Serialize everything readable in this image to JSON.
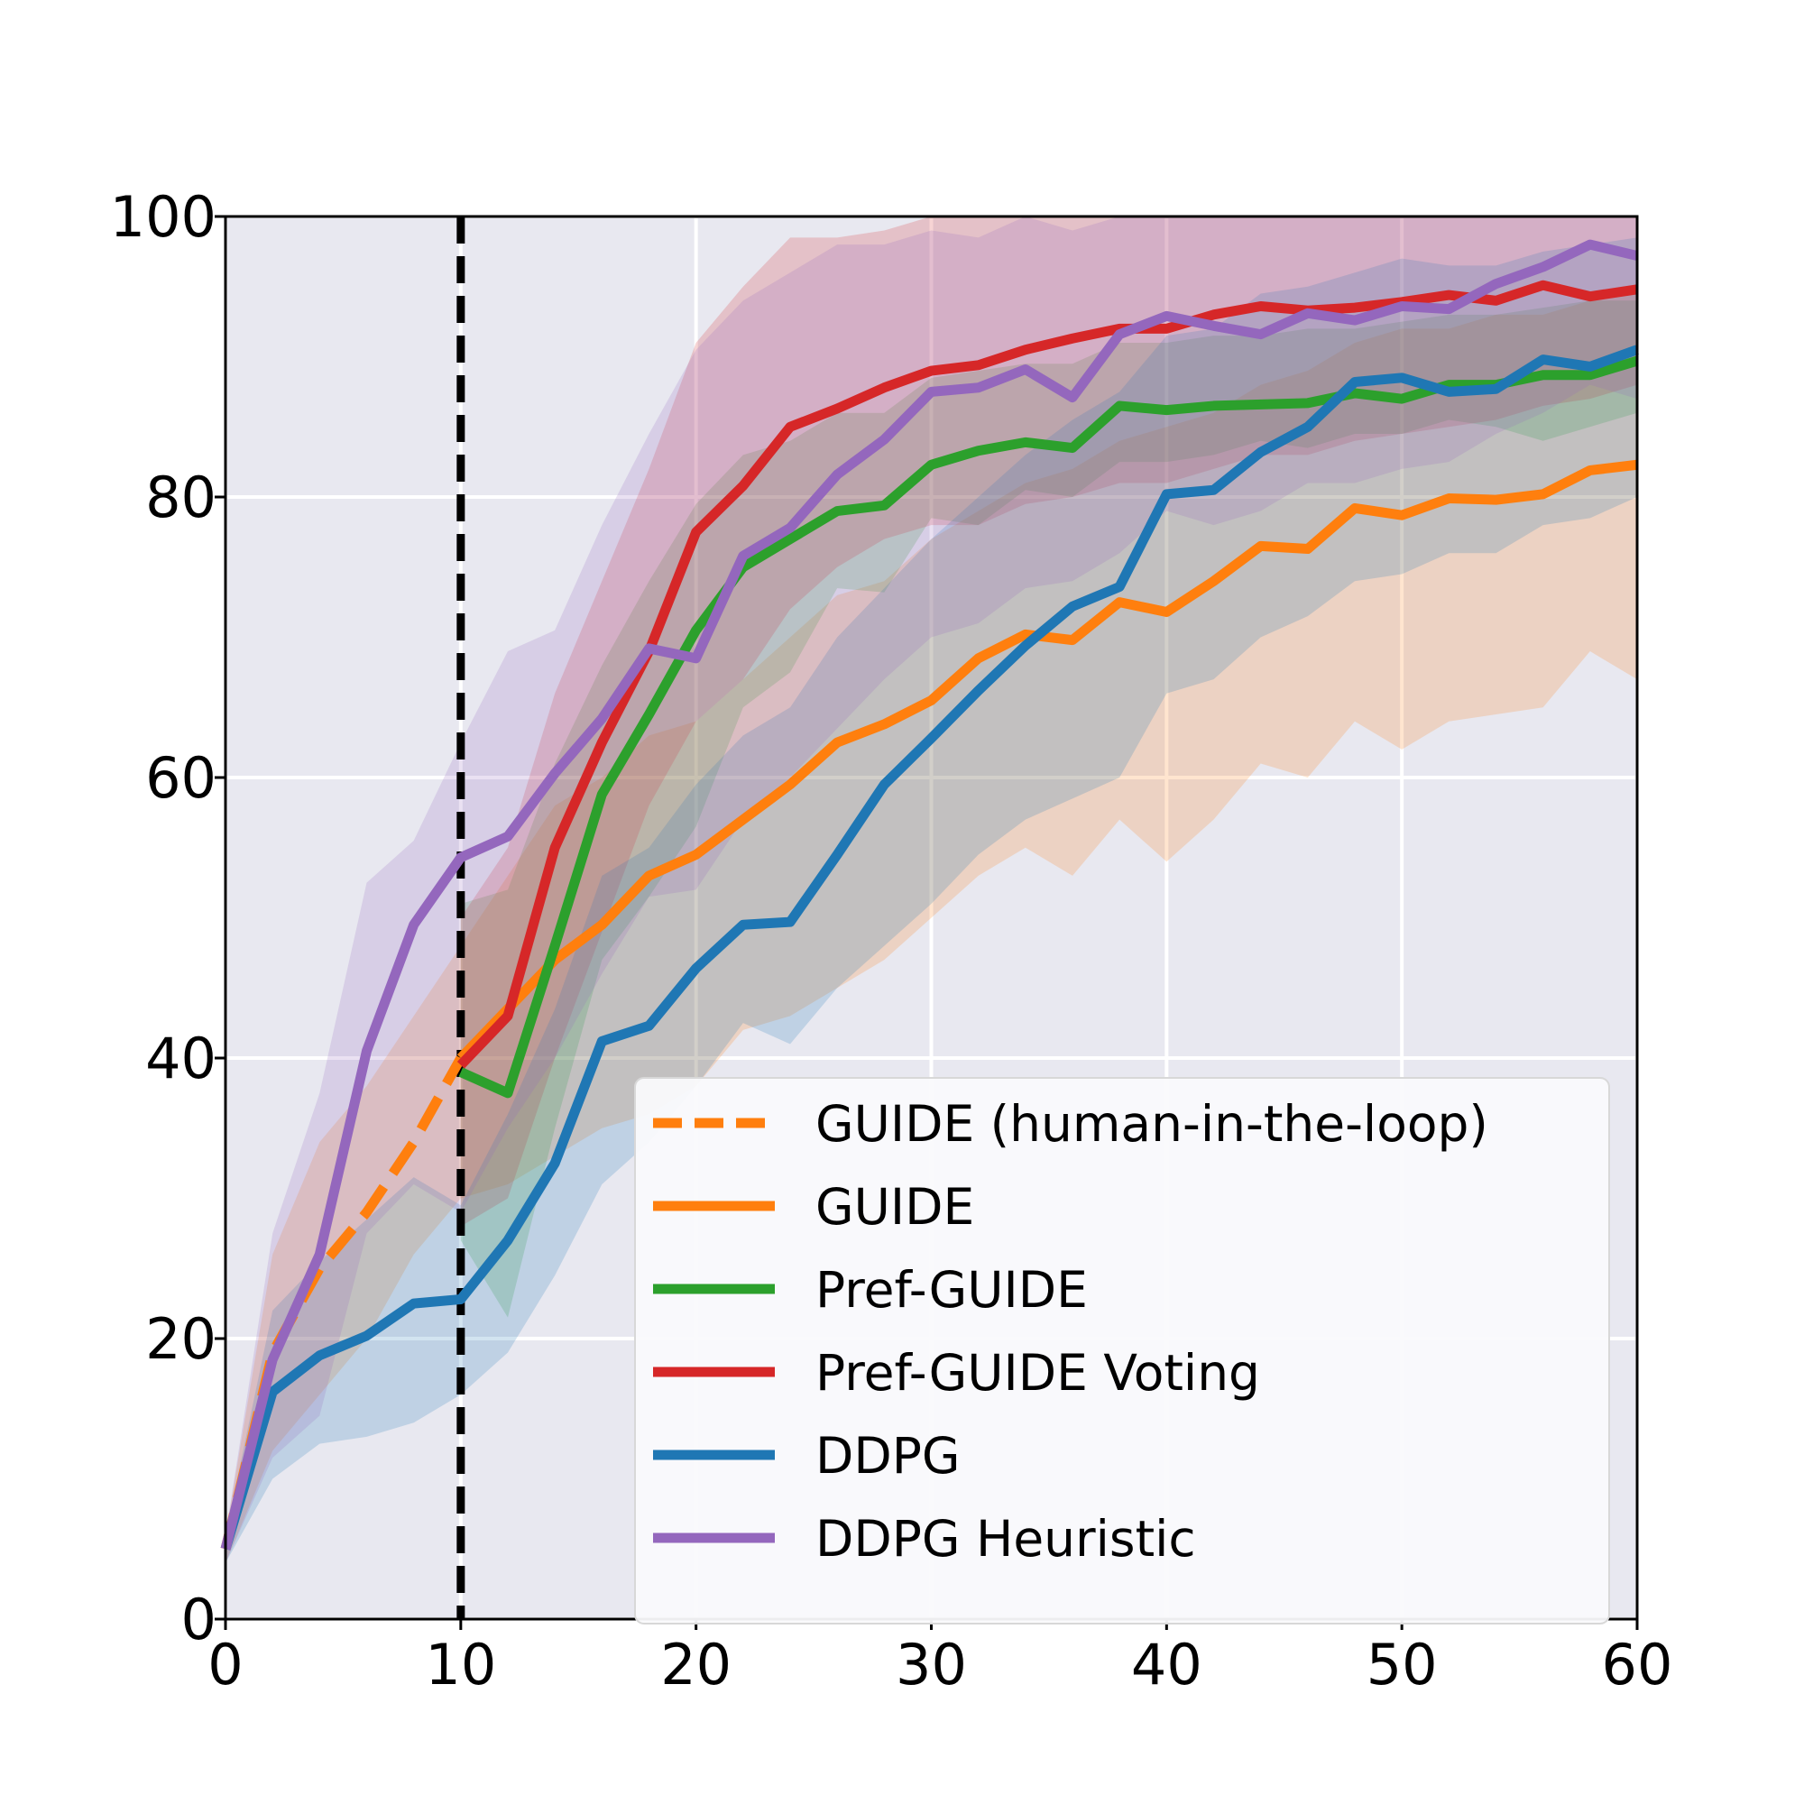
{
  "chart_data": {
    "type": "line",
    "title": "",
    "xlabel": "",
    "ylabel": "",
    "xlim": [
      0,
      60
    ],
    "ylim": [
      0,
      100
    ],
    "xticks": [
      0,
      10,
      20,
      30,
      40,
      50,
      60
    ],
    "yticks": [
      0,
      20,
      40,
      60,
      80,
      100
    ],
    "xtick_labels": [
      "0",
      "10",
      "20",
      "30",
      "40",
      "50",
      "60"
    ],
    "ytick_labels": [
      "0",
      "20",
      "40",
      "60",
      "80",
      "100"
    ],
    "grid": true,
    "background_color": "#e8e8f0",
    "legend_position": "bottom-right",
    "vline": {
      "x": 10,
      "style": "dashed",
      "color": "#000000"
    },
    "series": [
      {
        "name": "GUIDE (human-in-the-loop)",
        "color": "#ff7f0e",
        "style": "dashed",
        "x": [
          0,
          2,
          4,
          6,
          8,
          10
        ],
        "y": [
          5,
          19,
          25,
          29,
          34,
          40
        ],
        "lower": [
          4,
          12,
          16,
          20,
          26,
          30
        ],
        "upper": [
          6,
          26,
          34,
          38,
          43,
          48
        ]
      },
      {
        "name": "GUIDE",
        "color": "#ff7f0e",
        "style": "solid",
        "x": [
          10,
          12,
          14,
          16,
          18,
          20,
          22,
          24,
          26,
          28,
          30,
          32,
          34,
          36,
          38,
          40,
          42,
          44,
          46,
          48,
          50,
          52,
          54,
          56,
          58,
          60
        ],
        "y": [
          40,
          43.5,
          47,
          49.5,
          53,
          54.5,
          57,
          59.5,
          62.5,
          63.8,
          65.5,
          68.5,
          70.2,
          69.8,
          72.5,
          71.8,
          74,
          76.5,
          76.3,
          79.2,
          78.7,
          79.9,
          79.8,
          80.2,
          81.9,
          82.3
        ],
        "lower": [
          30,
          31,
          33,
          35,
          36,
          38,
          42,
          43,
          45,
          47,
          50,
          53,
          55,
          53,
          57,
          54,
          57,
          61,
          60,
          64,
          62,
          64,
          64.5,
          65,
          69,
          67
        ],
        "upper": [
          48,
          53,
          58,
          60,
          63,
          64,
          67,
          70,
          73,
          74,
          77,
          79,
          81,
          82,
          84,
          85,
          86,
          88,
          89,
          91,
          92,
          92,
          93,
          93,
          94,
          95
        ]
      },
      {
        "name": "Pref-GUIDE",
        "color": "#2ca02c",
        "style": "solid",
        "x": [
          10,
          12,
          14,
          16,
          18,
          20,
          22,
          24,
          26,
          28,
          30,
          32,
          34,
          36,
          38,
          40,
          42,
          44,
          46,
          48,
          50,
          52,
          54,
          56,
          58,
          60
        ],
        "y": [
          39,
          37.5,
          48,
          58.8,
          64.5,
          70.5,
          75,
          77,
          79,
          79.4,
          82.3,
          83.3,
          83.9,
          83.5,
          86.5,
          86.2,
          86.5,
          86.6,
          86.7,
          87.4,
          87,
          88,
          88,
          88.7,
          88.7,
          89.7
        ],
        "lower": [
          27,
          21.5,
          35,
          47,
          51.5,
          56.5,
          65,
          67.5,
          73.5,
          73.2,
          78.5,
          78,
          80.5,
          80,
          82.5,
          82.5,
          83,
          84,
          83.5,
          84.5,
          84.5,
          85.5,
          85,
          84,
          85,
          86
        ],
        "upper": [
          51,
          52,
          61,
          68,
          74,
          79.5,
          83,
          84,
          86,
          86,
          88.5,
          89,
          89.5,
          89.5,
          91,
          91,
          91.5,
          91.5,
          92,
          92,
          92.5,
          93,
          93,
          93.5,
          94,
          94
        ]
      },
      {
        "name": "Pref-GUIDE Voting",
        "color": "#d62728",
        "style": "solid",
        "x": [
          10,
          12,
          14,
          16,
          18,
          20,
          22,
          24,
          26,
          28,
          30,
          32,
          34,
          36,
          38,
          40,
          42,
          44,
          46,
          48,
          50,
          52,
          54,
          56,
          58,
          60
        ],
        "y": [
          39.5,
          43,
          55,
          62.5,
          69,
          77.5,
          80.8,
          85,
          86.3,
          87.8,
          89,
          89.4,
          90.5,
          91.3,
          92,
          92,
          93,
          93.6,
          93.3,
          93.5,
          93.9,
          94.4,
          94,
          95.1,
          94.3,
          94.8
        ],
        "lower": [
          28,
          30,
          40,
          49,
          58,
          64,
          67,
          72,
          75,
          77,
          78,
          78,
          79.5,
          80,
          81,
          81,
          82,
          83,
          83,
          84,
          84.5,
          85,
          85.5,
          86.5,
          87,
          88
        ],
        "upper": [
          50,
          55,
          66,
          74,
          82,
          91,
          95,
          98.5,
          98.5,
          99,
          100,
          100,
          100,
          100,
          100,
          100,
          100,
          100,
          100,
          100,
          100,
          100,
          100,
          100,
          100,
          100
        ]
      },
      {
        "name": "DDPG",
        "color": "#1f77b4",
        "style": "solid",
        "x": [
          0,
          2,
          4,
          6,
          8,
          10,
          12,
          14,
          16,
          18,
          20,
          22,
          24,
          26,
          28,
          30,
          32,
          34,
          36,
          38,
          40,
          42,
          44,
          46,
          48,
          50,
          52,
          54,
          56,
          58,
          60
        ],
        "y": [
          5,
          16.2,
          18.8,
          20.2,
          22.5,
          22.8,
          27,
          32.5,
          41.2,
          42.3,
          46.4,
          49.5,
          49.7,
          54.5,
          59.5,
          62.8,
          66.2,
          69.4,
          72.2,
          73.6,
          80.2,
          80.5,
          83.2,
          85,
          88.2,
          88.5,
          87.5,
          87.7,
          89.8,
          89.3,
          90.5
        ],
        "lower": [
          4,
          10,
          12.5,
          13,
          14,
          16,
          19,
          24.5,
          31,
          34,
          38,
          42.5,
          41,
          45,
          48,
          51,
          54.5,
          57,
          58.5,
          60,
          66,
          67,
          70,
          71.5,
          74,
          74.5,
          76,
          76,
          78,
          78.5,
          80
        ],
        "upper": [
          6,
          22,
          25.5,
          28.5,
          31.5,
          29.5,
          36,
          43.5,
          53,
          55,
          59.5,
          63,
          65,
          70,
          73.5,
          77,
          80,
          83,
          85.5,
          87.5,
          91.5,
          92,
          94.5,
          95,
          96,
          97,
          96.5,
          96.5,
          97.5,
          98,
          98.5
        ]
      },
      {
        "name": "DDPG Heuristic",
        "color": "#9467bd",
        "style": "solid",
        "x": [
          0,
          2,
          4,
          6,
          8,
          10,
          12,
          14,
          16,
          18,
          20,
          22,
          24,
          26,
          28,
          30,
          32,
          34,
          36,
          38,
          40,
          42,
          44,
          46,
          48,
          50,
          52,
          54,
          56,
          58,
          60
        ],
        "y": [
          5,
          18.5,
          26,
          40.5,
          49.5,
          54.3,
          55.8,
          60.3,
          64.2,
          69.2,
          68.5,
          75.8,
          77.8,
          81.6,
          84.1,
          87.5,
          87.8,
          89.1,
          87.1,
          91.6,
          92.9,
          92.2,
          91.6,
          93.1,
          92.6,
          93.6,
          93.4,
          95.2,
          96.4,
          98,
          97.2
        ],
        "lower": [
          4,
          11.5,
          14.5,
          27.5,
          31,
          29,
          35,
          40,
          46,
          51.5,
          52,
          57,
          60,
          63.5,
          67,
          70,
          71,
          73.5,
          74,
          76,
          79,
          78,
          79,
          81,
          81,
          82,
          82.5,
          84.5,
          86,
          88,
          87
        ],
        "upper": [
          6,
          27.5,
          37.5,
          52.5,
          55.5,
          62.5,
          69,
          70.5,
          78,
          84.5,
          90.5,
          94,
          96,
          98,
          98,
          99,
          98.5,
          100,
          99,
          100,
          100,
          100,
          100,
          100,
          100,
          100,
          100,
          100,
          100,
          100,
          100
        ]
      }
    ]
  }
}
